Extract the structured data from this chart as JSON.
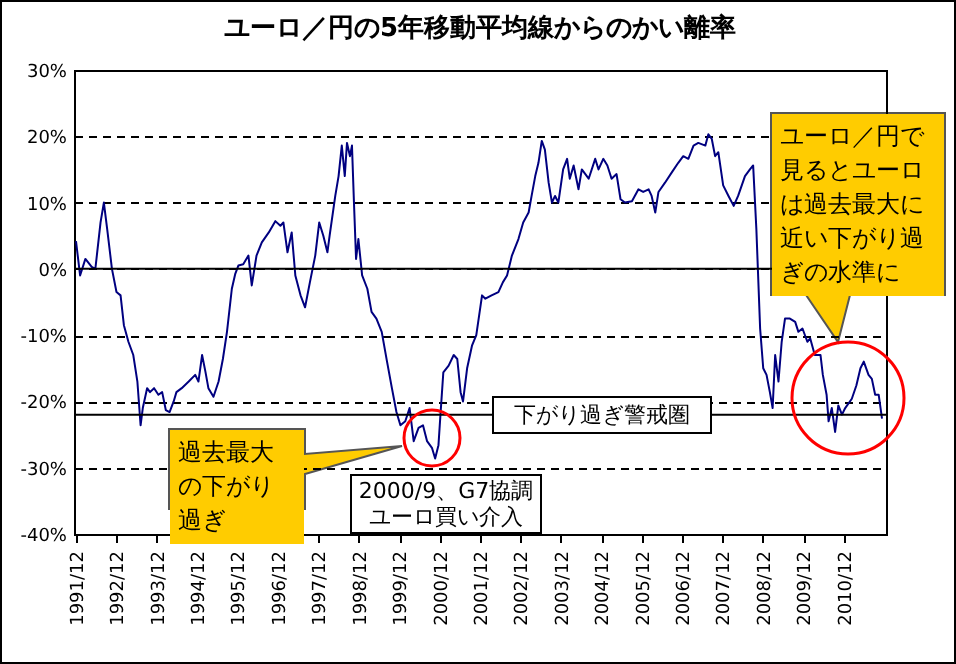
{
  "chart_data": {
    "type": "line",
    "title": "ユーロ／円の5年移動平均線からのかい離率",
    "x": [
      "1991-12-02",
      "1992-01-08",
      "1992-02-25",
      "1992-04-22",
      "1992-05-25",
      "1992-07-11",
      "1992-08-10",
      "1992-09-09",
      "1992-10-22",
      "1992-12-02",
      "1993-01-08",
      "1993-02-07",
      "1993-03-20",
      "1993-05-03",
      "1993-06-09",
      "1993-07-08",
      "1993-07-28",
      "1993-09-05",
      "1993-10-01",
      "1993-11-07",
      "1993-12-16",
      "1994-01-19",
      "1994-02-21",
      "1994-03-27",
      "1994-05-03",
      "1994-05-28",
      "1994-07-15",
      "1994-09-16",
      "1994-11-14",
      "1994-12-13",
      "1995-01-15",
      "1995-02-14",
      "1995-03-13",
      "1995-04-28",
      "1995-06-13",
      "1995-07-22",
      "1995-08-28",
      "1995-10-11",
      "1995-11-10",
      "1995-12-09",
      "1996-01-22",
      "1996-03-09",
      "1996-04-08",
      "1996-05-21",
      "1996-07-08",
      "1996-09-09",
      "1996-11-07",
      "1996-12-23",
      "1997-01-19",
      "1997-02-25",
      "1997-04-04",
      "1997-05-07",
      "1997-06-23",
      "1997-08-03",
      "1997-09-16",
      "1997-11-03",
      "1997-12-09",
      "1998-01-15",
      "1998-02-21",
      "1998-03-13",
      "1998-05-03",
      "1998-06-02",
      "1998-07-01",
      "1998-07-28",
      "1998-08-17",
      "1998-09-13",
      "1998-10-01",
      "1998-10-19",
      "1998-11-07",
      "1998-11-28",
      "1999-01-01",
      "1999-02-17",
      "1999-03-27",
      "1999-05-10",
      "1999-06-27",
      "1999-08-14",
      "1999-09-27",
      "1999-11-07",
      "1999-12-13",
      "2000-01-26",
      "2000-03-05",
      "2000-04-11",
      "2000-05-25",
      "2000-07-04",
      "2000-08-10",
      "2000-09-23",
      "2000-10-22",
      "2000-11-21",
      "2000-12-09",
      "2001-01-04",
      "2001-02-21",
      "2001-04-08",
      "2001-05-10",
      "2001-06-09",
      "2001-07-01",
      "2001-08-07",
      "2001-09-20",
      "2001-10-29",
      "2001-12-20",
      "2002-01-19",
      "2002-03-16",
      "2002-05-17",
      "2002-06-27",
      "2002-08-03",
      "2002-09-16",
      "2002-11-14",
      "2002-12-27",
      "2003-02-14",
      "2003-03-13",
      "2003-04-15",
      "2003-05-14",
      "2003-06-13",
      "2003-07-11",
      "2003-08-14",
      "2003-09-13",
      "2003-10-11",
      "2003-11-10",
      "2003-12-23",
      "2004-01-28",
      "2004-02-21",
      "2004-03-27",
      "2004-05-10",
      "2004-06-09",
      "2004-08-10",
      "2004-10-08",
      "2004-11-07",
      "2004-12-20",
      "2005-01-26",
      "2005-03-05",
      "2005-04-19",
      "2005-05-25",
      "2005-07-04",
      "2005-09-05",
      "2005-11-03",
      "2005-12-16",
      "2006-02-03",
      "2006-03-02",
      "2006-04-04",
      "2006-05-03",
      "2006-07-01",
      "2006-09-02",
      "2006-10-29",
      "2006-12-13",
      "2007-01-28",
      "2007-03-16",
      "2007-04-28",
      "2007-07-01",
      "2007-07-28",
      "2007-08-28",
      "2007-09-27",
      "2007-10-26",
      "2007-12-09",
      "2008-01-26",
      "2008-03-13",
      "2008-04-22",
      "2008-06-23",
      "2008-08-07",
      "2008-09-05",
      "2008-10-04",
      "2008-11-07",
      "2008-12-05",
      "2009-01-04",
      "2009-02-03",
      "2009-02-28",
      "2009-03-23",
      "2009-04-22",
      "2009-05-21",
      "2009-06-20",
      "2009-08-03",
      "2009-09-20",
      "2009-10-19",
      "2009-11-25",
      "2010-01-08",
      "2010-02-03",
      "2010-03-16",
      "2010-05-07",
      "2010-05-28",
      "2010-07-01",
      "2010-07-19",
      "2010-08-17",
      "2010-09-16",
      "2010-10-15",
      "2010-11-17",
      "2010-12-16",
      "2011-02-14",
      "2011-03-27",
      "2011-05-03",
      "2011-06-02",
      "2011-07-15",
      "2011-08-14",
      "2011-09-13",
      "2011-10-15",
      "2011-11-14"
    ],
    "series": [
      {
        "color": "#000080",
        "values": [
          4.2,
          -1,
          1.5,
          0.3,
          0,
          7,
          10,
          6,
          0,
          -3.5,
          -4,
          -8.5,
          -11,
          -13,
          -17,
          -23.6,
          -21,
          -18,
          -18.6,
          -18,
          -19,
          -18.6,
          -21.3,
          -21.6,
          -20,
          -18.6,
          -18,
          -17,
          -16,
          -17,
          -13,
          -15.5,
          -18,
          -19.3,
          -17,
          -13.6,
          -9.5,
          -3,
          -0.8,
          0.5,
          0.7,
          2,
          -2.5,
          2,
          4,
          5.5,
          7.2,
          6.5,
          7,
          2.5,
          5.5,
          -1,
          -4,
          -5.8,
          -2,
          2,
          7,
          5,
          2.5,
          5,
          11,
          14,
          18.6,
          14,
          19,
          17,
          18.6,
          10,
          1.5,
          4.5,
          -1,
          -3,
          -6.5,
          -7.5,
          -9.5,
          -14,
          -18,
          -21.6,
          -23.6,
          -23,
          -21,
          -26,
          -24,
          -23.6,
          -26,
          -27,
          -28.6,
          -26.6,
          -22,
          -15.6,
          -14.6,
          -13,
          -13.6,
          -18.6,
          -20,
          -15,
          -11.6,
          -10,
          -4,
          -4.5,
          -4,
          -3.5,
          -2,
          -1,
          2,
          4.5,
          7,
          8.5,
          11,
          14,
          16,
          19.3,
          18,
          13,
          10,
          11,
          10,
          15,
          16.6,
          13.6,
          15.6,
          12,
          15,
          13.6,
          16.6,
          15,
          16.6,
          15.6,
          13.6,
          14.3,
          10.5,
          10,
          10.2,
          12,
          11.6,
          12,
          11,
          8.5,
          11.6,
          13,
          14.6,
          16,
          17,
          16.6,
          18.6,
          19,
          18.6,
          20.3,
          19.6,
          17,
          17.6,
          12.6,
          11,
          9.5,
          11,
          14,
          15,
          15.6,
          6,
          -9,
          -15,
          -16,
          -18.6,
          -21,
          -13,
          -17,
          -11,
          -7.5,
          -7.5,
          -8,
          -9.5,
          -9,
          -11,
          -10.5,
          -13,
          -13,
          -16,
          -19,
          -23,
          -21,
          -24.6,
          -20.6,
          -22,
          -21,
          -19.6,
          -17.6,
          -15,
          -14,
          -16,
          -16.6,
          -19,
          -19,
          -22.6
        ]
      }
    ],
    "xlim": [
      "1991-11-14",
      "2011-12-20"
    ],
    "xticks": [
      {
        "value": "1991-12",
        "label": "1991/12"
      },
      {
        "value": "1992-12",
        "label": "1992/12"
      },
      {
        "value": "1993-12",
        "label": "1993/12"
      },
      {
        "value": "1994-12",
        "label": "1994/12"
      },
      {
        "value": "1995-12",
        "label": "1995/12"
      },
      {
        "value": "1996-12",
        "label": "1996/12"
      },
      {
        "value": "1997-12",
        "label": "1997/12"
      },
      {
        "value": "1998-12",
        "label": "1998/12"
      },
      {
        "value": "1999-12",
        "label": "1999/12"
      },
      {
        "value": "2000-12",
        "label": "2000/12"
      },
      {
        "value": "2001-12",
        "label": "2001/12"
      },
      {
        "value": "2002-12",
        "label": "2002/12"
      },
      {
        "value": "2003-12",
        "label": "2003/12"
      },
      {
        "value": "2004-12",
        "label": "2004/12"
      },
      {
        "value": "2005-12",
        "label": "2005/12"
      },
      {
        "value": "2006-12",
        "label": "2006/12"
      },
      {
        "value": "2007-12",
        "label": "2007/12"
      },
      {
        "value": "2008-12",
        "label": "2008/12"
      },
      {
        "value": "2009-12",
        "label": "2009/12"
      },
      {
        "value": "2010-12",
        "label": "2010/12"
      }
    ],
    "ylim": [
      -40,
      30
    ],
    "yticks": [
      {
        "value": -40,
        "label": "-40%"
      },
      {
        "value": -30,
        "label": "-30%"
      },
      {
        "value": -20,
        "label": "-20%"
      },
      {
        "value": -10,
        "label": "-10%"
      },
      {
        "value": 0,
        "label": "0%"
      },
      {
        "value": 10,
        "label": "10%"
      },
      {
        "value": 20,
        "label": "20%"
      },
      {
        "value": 30,
        "label": "30%"
      }
    ],
    "grid": "y",
    "line_style": "solid",
    "ref_lines": [
      {
        "axis": "y",
        "value": 0,
        "color": "#000000",
        "line_style": "solid"
      },
      {
        "axis": "y",
        "value": -22,
        "label": "下がり過ぎ警戒圏",
        "color": "#000000",
        "line_style": "solid"
      }
    ],
    "annotations": [
      "2000/9、G7協調ユーロ買い介入",
      "過去最大の下がり過ぎ",
      "ユーロ／円で見るとユーロは過去最大に近い下がり過ぎの水準に"
    ]
  }
}
